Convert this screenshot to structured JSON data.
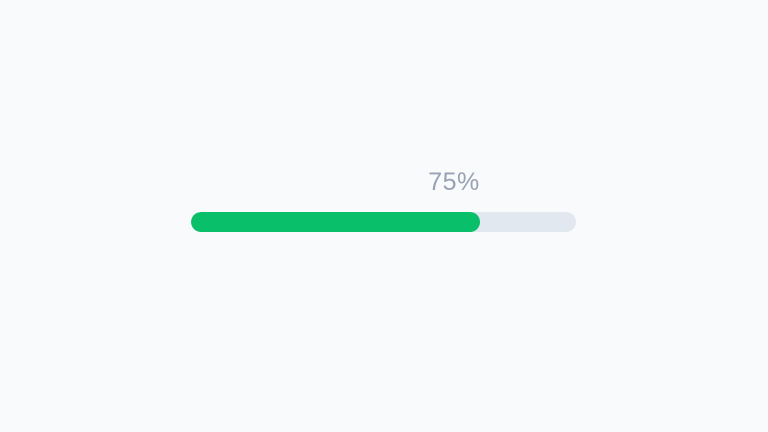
{
  "page": {
    "background_color": "#f8fafc"
  },
  "progress": {
    "label": "75%",
    "percent_value": 75,
    "fill_width": "75%",
    "fill_color": "#0abf69",
    "track_color": "#e2e8f0",
    "label_color": "#98a2b3"
  }
}
